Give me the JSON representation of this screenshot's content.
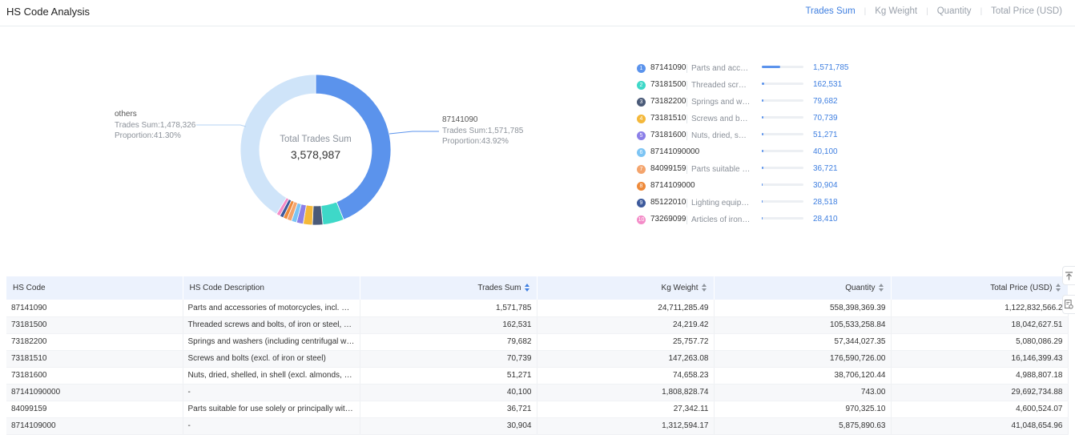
{
  "header": {
    "title": "HS Code Analysis",
    "tabs": [
      "Trades Sum",
      "Kg Weight",
      "Quantity",
      "Total Price (USD)"
    ]
  },
  "donut": {
    "center_label": "Total Trades Sum",
    "center_value": "3,578,987",
    "callout_left": {
      "name": "others",
      "value_line": "Trades Sum:1,478,326",
      "proportion_line": "Proportion:41.30%"
    },
    "callout_right": {
      "name": "87141090",
      "value_line": "Trades Sum:1,571,785",
      "proportion_line": "Proportion:43.92%"
    }
  },
  "legend": [
    {
      "rank": "1",
      "code": "87141090",
      "desc": "Parts and access...",
      "value": "1,571,785"
    },
    {
      "rank": "2",
      "code": "73181500",
      "desc": "Threaded screws...",
      "value": "162,531"
    },
    {
      "rank": "3",
      "code": "73182200",
      "desc": "Springs and was...",
      "value": "79,682"
    },
    {
      "rank": "4",
      "code": "73181510",
      "desc": "Screws and bolts...",
      "value": "70,739"
    },
    {
      "rank": "5",
      "code": "73181600",
      "desc": "Nuts, dried, shell...",
      "value": "51,271"
    },
    {
      "rank": "6",
      "code": "87141090000",
      "desc": "",
      "value": "40,100"
    },
    {
      "rank": "7",
      "code": "84099159",
      "desc": "Parts suitable for...",
      "value": "36,721"
    },
    {
      "rank": "8",
      "code": "8714109000",
      "desc": "",
      "value": "30,904"
    },
    {
      "rank": "9",
      "code": "85122010",
      "desc": "Lighting equipme...",
      "value": "28,518"
    },
    {
      "rank": "10",
      "code": "73269099",
      "desc": "Articles of iron or...",
      "value": "28,410"
    }
  ],
  "chart_data": {
    "type": "pie",
    "title": "",
    "total_label": "Total Trades Sum",
    "total": 3578987,
    "slices": [
      {
        "label": "87141090",
        "value": 1571785,
        "color": "#5b93ec"
      },
      {
        "label": "73181500",
        "value": 162531,
        "color": "#3ed8c8"
      },
      {
        "label": "73182200",
        "value": 79682,
        "color": "#4a5a78"
      },
      {
        "label": "73181510",
        "value": 70739,
        "color": "#f4b83a"
      },
      {
        "label": "73181600",
        "value": 51271,
        "color": "#8b7fe8"
      },
      {
        "label": "87141090000",
        "value": 40100,
        "color": "#7cc4f4"
      },
      {
        "label": "84099159",
        "value": 36721,
        "color": "#f4a46c"
      },
      {
        "label": "8714109000",
        "value": 30904,
        "color": "#ee8a3a"
      },
      {
        "label": "85122010",
        "value": 28518,
        "color": "#3d5a9c"
      },
      {
        "label": "73269099",
        "value": 28410,
        "color": "#f48cc8"
      },
      {
        "label": "others",
        "value": 1478326,
        "color": "#cfe4f9"
      }
    ]
  },
  "table": {
    "headers": [
      "HS Code",
      "HS Code Description",
      "Trades Sum",
      "Kg Weight",
      "Quantity",
      "Total Price (USD)"
    ],
    "rows": [
      [
        "87141090",
        "Parts and accessories of motorcycles, incl. mopeds",
        "1,571,785",
        "24,711,285.49",
        "558,398,369.39",
        "1,122,832,566.2"
      ],
      [
        "73181500",
        "Threaded screws and bolts, of iron or steel, whether",
        "162,531",
        "24,219.42",
        "105,533,258.84",
        "18,042,627.51"
      ],
      [
        "73182200",
        "Springs and washers (including centrifugal washers)",
        "79,682",
        "25,757.72",
        "57,344,027.35",
        "5,080,086.29"
      ],
      [
        "73181510",
        "Screws and bolts (excl. of iron or steel)",
        "70,739",
        "147,263.08",
        "176,590,726.00",
        "16,146,399.43"
      ],
      [
        "73181600",
        "Nuts, dried, shelled, in shell (excl. almonds, hazelnuts)",
        "51,271",
        "74,658.23",
        "38,706,120.44",
        "4,988,807.18"
      ],
      [
        "87141090000",
        "-",
        "40,100",
        "1,808,828.74",
        "743.00",
        "29,692,734.88"
      ],
      [
        "84099159",
        "Parts suitable for use solely or principally with spark",
        "36,721",
        "27,342.11",
        "970,325.10",
        "4,600,524.07"
      ],
      [
        "8714109000",
        "-",
        "30,904",
        "1,312,594.17",
        "5,875,890.63",
        "41,048,654.96"
      ]
    ]
  },
  "colors": {
    "accent": "#3f7fe0",
    "badges": [
      "#5b93ec",
      "#3ed8c8",
      "#4a5a78",
      "#f4b83a",
      "#8b7fe8",
      "#7cc4f4",
      "#f4a46c",
      "#ee8a3a",
      "#3d5a9c",
      "#f48cc8"
    ]
  },
  "side_tools": {
    "icons": [
      "back-to-top-icon",
      "document-settings-icon"
    ]
  }
}
